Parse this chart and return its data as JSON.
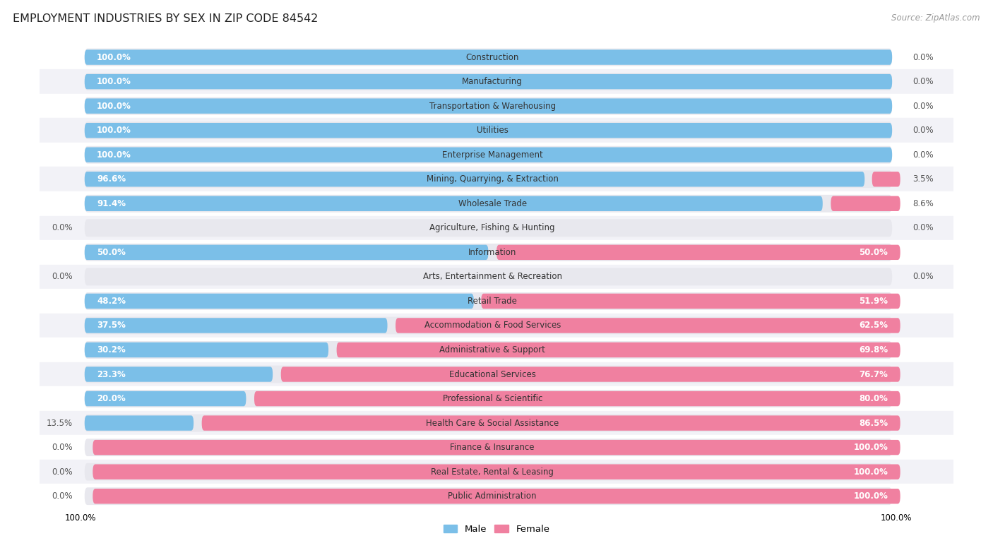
{
  "title": "EMPLOYMENT INDUSTRIES BY SEX IN ZIP CODE 84542",
  "source": "Source: ZipAtlas.com",
  "categories": [
    "Construction",
    "Manufacturing",
    "Transportation & Warehousing",
    "Utilities",
    "Enterprise Management",
    "Mining, Quarrying, & Extraction",
    "Wholesale Trade",
    "Agriculture, Fishing & Hunting",
    "Information",
    "Arts, Entertainment & Recreation",
    "Retail Trade",
    "Accommodation & Food Services",
    "Administrative & Support",
    "Educational Services",
    "Professional & Scientific",
    "Health Care & Social Assistance",
    "Finance & Insurance",
    "Real Estate, Rental & Leasing",
    "Public Administration"
  ],
  "male": [
    100.0,
    100.0,
    100.0,
    100.0,
    100.0,
    96.6,
    91.4,
    0.0,
    50.0,
    0.0,
    48.2,
    37.5,
    30.2,
    23.3,
    20.0,
    13.5,
    0.0,
    0.0,
    0.0
  ],
  "female": [
    0.0,
    0.0,
    0.0,
    0.0,
    0.0,
    3.5,
    8.6,
    0.0,
    50.0,
    0.0,
    51.9,
    62.5,
    69.8,
    76.7,
    80.0,
    86.5,
    100.0,
    100.0,
    100.0
  ],
  "male_color": "#7bbfe8",
  "female_color": "#f080a0",
  "male_light_color": "#b8d8f0",
  "female_light_color": "#f8c0d0",
  "pill_bg_color": "#e8e8ee",
  "row_even_color": "#ffffff",
  "row_odd_color": "#f2f2f7",
  "title_fontsize": 11.5,
  "label_fontsize": 8.5,
  "cat_fontsize": 8.5,
  "source_fontsize": 8.5,
  "figsize": [
    14.06,
    7.76
  ],
  "dpi": 100
}
